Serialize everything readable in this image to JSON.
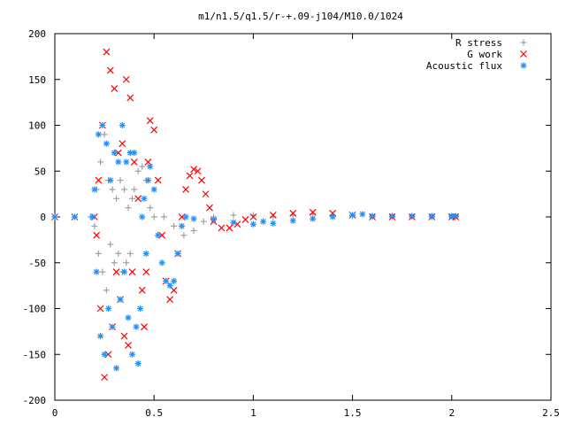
{
  "chart_data": {
    "type": "scatter",
    "title": "m1/n1.5/q1.5/r-+.09-j104/M10.0/1024",
    "xlabel": "",
    "ylabel": "",
    "xlim": [
      0,
      2.5
    ],
    "ylim": [
      -200,
      200
    ],
    "xticks": [
      0,
      0.5,
      1,
      1.5,
      2,
      2.5
    ],
    "xtick_labels": [
      "0",
      "0.5",
      "1",
      "1.5",
      "2",
      "2.5"
    ],
    "yticks": [
      200,
      150,
      100,
      50,
      0,
      -50,
      -100,
      -150,
      -200
    ],
    "ytick_labels": [
      "200",
      "150",
      "100",
      "50",
      "0",
      "-50",
      "-100",
      "-150",
      "-200"
    ],
    "grid": false,
    "legend_position": "top-right",
    "series": [
      {
        "name": "R stress",
        "marker": "+",
        "color": "#a0a0a0",
        "points": [
          [
            0.0,
            0
          ],
          [
            0.1,
            0
          ],
          [
            0.18,
            0
          ],
          [
            0.2,
            -10
          ],
          [
            0.21,
            30
          ],
          [
            0.22,
            -40
          ],
          [
            0.23,
            60
          ],
          [
            0.24,
            -60
          ],
          [
            0.25,
            90
          ],
          [
            0.26,
            -80
          ],
          [
            0.27,
            40
          ],
          [
            0.28,
            -30
          ],
          [
            0.29,
            30
          ],
          [
            0.3,
            -50
          ],
          [
            0.31,
            20
          ],
          [
            0.32,
            -40
          ],
          [
            0.33,
            40
          ],
          [
            0.34,
            -60
          ],
          [
            0.35,
            30
          ],
          [
            0.36,
            -50
          ],
          [
            0.37,
            10
          ],
          [
            0.38,
            -40
          ],
          [
            0.39,
            20
          ],
          [
            0.4,
            30
          ],
          [
            0.42,
            50
          ],
          [
            0.44,
            55
          ],
          [
            0.46,
            40
          ],
          [
            0.48,
            10
          ],
          [
            0.5,
            0
          ],
          [
            0.55,
            0
          ],
          [
            0.6,
            -10
          ],
          [
            0.65,
            -20
          ],
          [
            0.7,
            -15
          ],
          [
            0.75,
            -5
          ],
          [
            0.8,
            0
          ],
          [
            0.9,
            2
          ],
          [
            1.0,
            2
          ],
          [
            1.1,
            0
          ],
          [
            1.2,
            2
          ],
          [
            1.3,
            3
          ],
          [
            1.4,
            2
          ],
          [
            1.5,
            1
          ],
          [
            1.6,
            0
          ],
          [
            1.7,
            0
          ],
          [
            1.8,
            0
          ],
          [
            1.9,
            0
          ],
          [
            2.0,
            0
          ],
          [
            2.02,
            0
          ]
        ]
      },
      {
        "name": "G work",
        "marker": "x",
        "color": "#ff0000",
        "points": [
          [
            0.0,
            0
          ],
          [
            0.1,
            0
          ],
          [
            0.2,
            0
          ],
          [
            0.21,
            -20
          ],
          [
            0.22,
            40
          ],
          [
            0.23,
            -100
          ],
          [
            0.24,
            100
          ],
          [
            0.25,
            -175
          ],
          [
            0.26,
            180
          ],
          [
            0.27,
            -150
          ],
          [
            0.28,
            160
          ],
          [
            0.29,
            -120
          ],
          [
            0.3,
            140
          ],
          [
            0.31,
            -60
          ],
          [
            0.32,
            70
          ],
          [
            0.33,
            -90
          ],
          [
            0.34,
            80
          ],
          [
            0.35,
            -130
          ],
          [
            0.36,
            150
          ],
          [
            0.37,
            -140
          ],
          [
            0.38,
            130
          ],
          [
            0.39,
            -60
          ],
          [
            0.4,
            60
          ],
          [
            0.42,
            20
          ],
          [
            0.44,
            -80
          ],
          [
            0.45,
            -120
          ],
          [
            0.46,
            -60
          ],
          [
            0.47,
            60
          ],
          [
            0.48,
            105
          ],
          [
            0.5,
            95
          ],
          [
            0.52,
            40
          ],
          [
            0.54,
            -20
          ],
          [
            0.56,
            -70
          ],
          [
            0.58,
            -90
          ],
          [
            0.6,
            -80
          ],
          [
            0.62,
            -40
          ],
          [
            0.64,
            0
          ],
          [
            0.66,
            30
          ],
          [
            0.68,
            45
          ],
          [
            0.7,
            52
          ],
          [
            0.72,
            50
          ],
          [
            0.74,
            40
          ],
          [
            0.76,
            25
          ],
          [
            0.78,
            10
          ],
          [
            0.8,
            -5
          ],
          [
            0.84,
            -12
          ],
          [
            0.88,
            -12
          ],
          [
            0.92,
            -8
          ],
          [
            0.96,
            -3
          ],
          [
            1.0,
            0
          ],
          [
            1.1,
            2
          ],
          [
            1.2,
            4
          ],
          [
            1.3,
            5
          ],
          [
            1.4,
            4
          ],
          [
            1.5,
            2
          ],
          [
            1.6,
            0
          ],
          [
            1.7,
            0
          ],
          [
            1.8,
            0
          ],
          [
            1.9,
            0
          ],
          [
            2.0,
            0
          ],
          [
            2.02,
            0
          ]
        ]
      },
      {
        "name": "Acoustic flux",
        "marker": "*",
        "color": "#1e90ff",
        "points": [
          [
            0.0,
            0
          ],
          [
            0.1,
            0
          ],
          [
            0.19,
            0
          ],
          [
            0.2,
            30
          ],
          [
            0.21,
            -60
          ],
          [
            0.22,
            90
          ],
          [
            0.23,
            -130
          ],
          [
            0.24,
            100
          ],
          [
            0.25,
            -150
          ],
          [
            0.26,
            80
          ],
          [
            0.27,
            -100
          ],
          [
            0.28,
            40
          ],
          [
            0.29,
            -120
          ],
          [
            0.3,
            70
          ],
          [
            0.31,
            -165
          ],
          [
            0.32,
            60
          ],
          [
            0.33,
            -90
          ],
          [
            0.34,
            100
          ],
          [
            0.35,
            -60
          ],
          [
            0.36,
            60
          ],
          [
            0.37,
            -110
          ],
          [
            0.38,
            70
          ],
          [
            0.39,
            -150
          ],
          [
            0.4,
            70
          ],
          [
            0.41,
            -120
          ],
          [
            0.42,
            -160
          ],
          [
            0.43,
            -100
          ],
          [
            0.44,
            0
          ],
          [
            0.45,
            20
          ],
          [
            0.46,
            -40
          ],
          [
            0.47,
            40
          ],
          [
            0.48,
            55
          ],
          [
            0.5,
            30
          ],
          [
            0.52,
            -20
          ],
          [
            0.54,
            -50
          ],
          [
            0.56,
            -70
          ],
          [
            0.58,
            -75
          ],
          [
            0.6,
            -70
          ],
          [
            0.62,
            -40
          ],
          [
            0.64,
            -10
          ],
          [
            0.66,
            0
          ],
          [
            0.7,
            -2
          ],
          [
            0.8,
            -3
          ],
          [
            0.9,
            -6
          ],
          [
            1.0,
            -8
          ],
          [
            1.05,
            -5
          ],
          [
            1.1,
            -7
          ],
          [
            1.2,
            -4
          ],
          [
            1.3,
            -2
          ],
          [
            1.4,
            0
          ],
          [
            1.5,
            2
          ],
          [
            1.55,
            3
          ],
          [
            1.6,
            1
          ],
          [
            1.7,
            1
          ],
          [
            1.8,
            1
          ],
          [
            1.9,
            1
          ],
          [
            2.0,
            1
          ],
          [
            2.02,
            1
          ]
        ]
      }
    ]
  }
}
